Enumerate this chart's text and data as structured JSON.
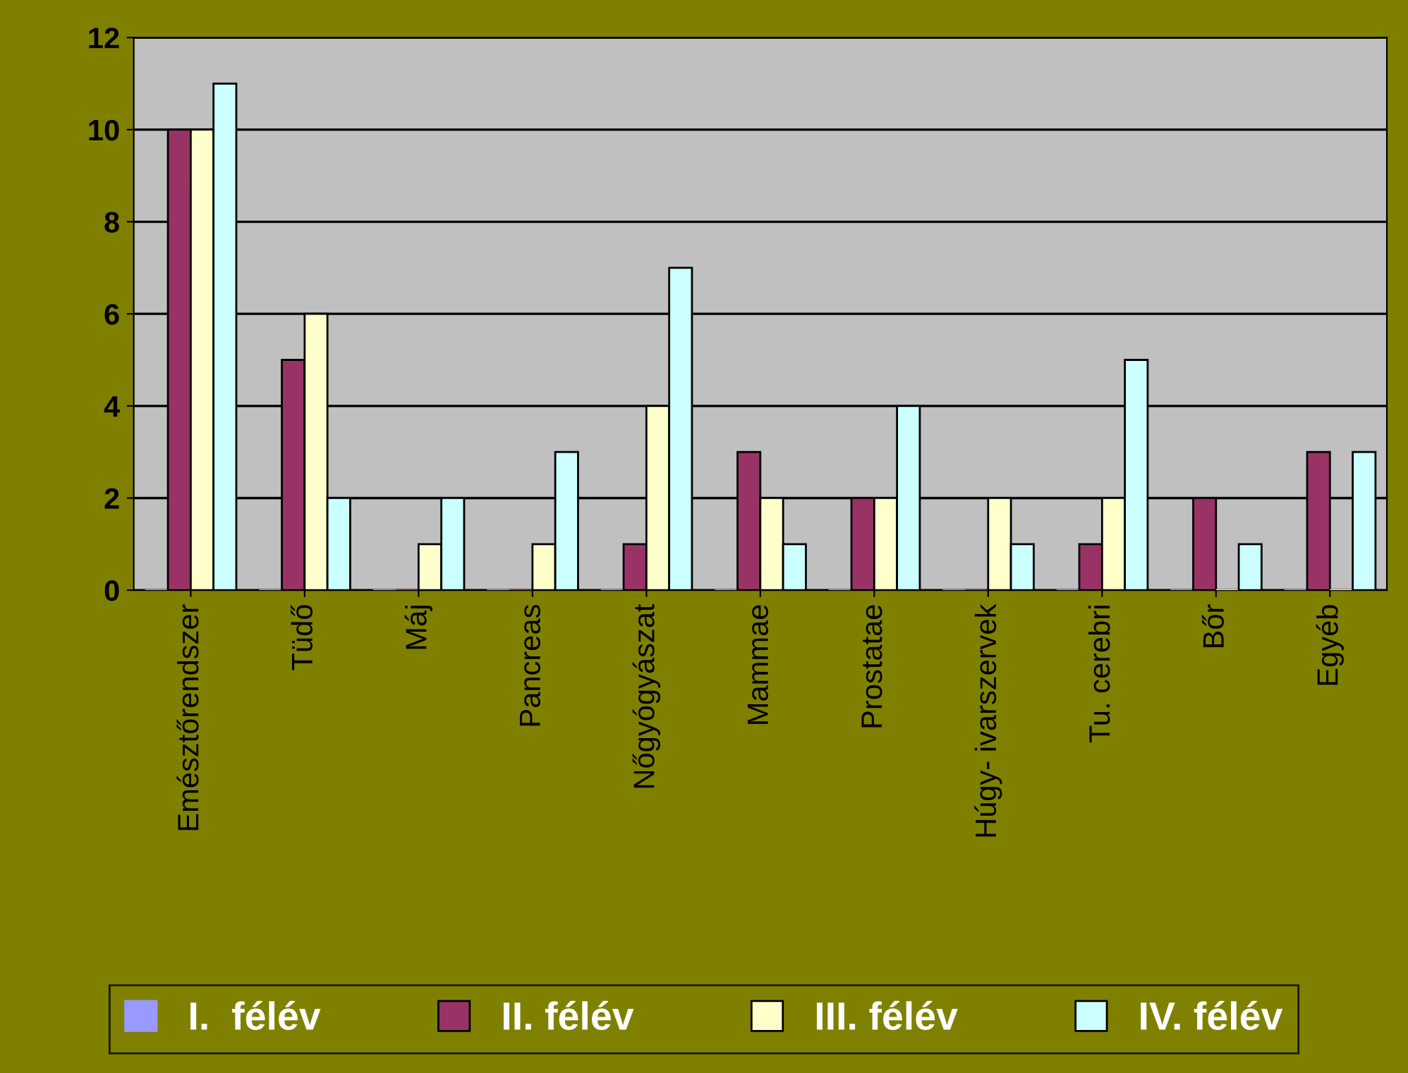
{
  "chart_data": {
    "type": "bar",
    "categories": [
      "Emésztőrendszer",
      "Tüdő",
      "Máj",
      "Pancreas",
      "Nőgyógyászat",
      "Mammae",
      "Prostatae",
      "Húgy- ivarszervek",
      "Tu. cerebri",
      "Bőr",
      "Egyéb"
    ],
    "series": [
      {
        "name": "I.  félév",
        "color": "#9999ff",
        "values": [
          0,
          0,
          0,
          0,
          0,
          0,
          0,
          0,
          0,
          0,
          0
        ]
      },
      {
        "name": "II. félév",
        "color": "#993366",
        "values": [
          10,
          5,
          0,
          0,
          1,
          3,
          2,
          0,
          1,
          2,
          3
        ]
      },
      {
        "name": "III. félév",
        "color": "#ffffcc",
        "values": [
          10,
          6,
          1,
          1,
          4,
          2,
          2,
          2,
          2,
          0,
          0
        ]
      },
      {
        "name": "IV. félév",
        "color": "#ccffff",
        "values": [
          11,
          2,
          2,
          3,
          7,
          1,
          4,
          1,
          5,
          1,
          3
        ]
      }
    ],
    "ylim": [
      0,
      12
    ],
    "yticks": [
      0,
      2,
      4,
      6,
      8,
      10,
      12
    ],
    "grid": "y",
    "legend": "bottom"
  }
}
